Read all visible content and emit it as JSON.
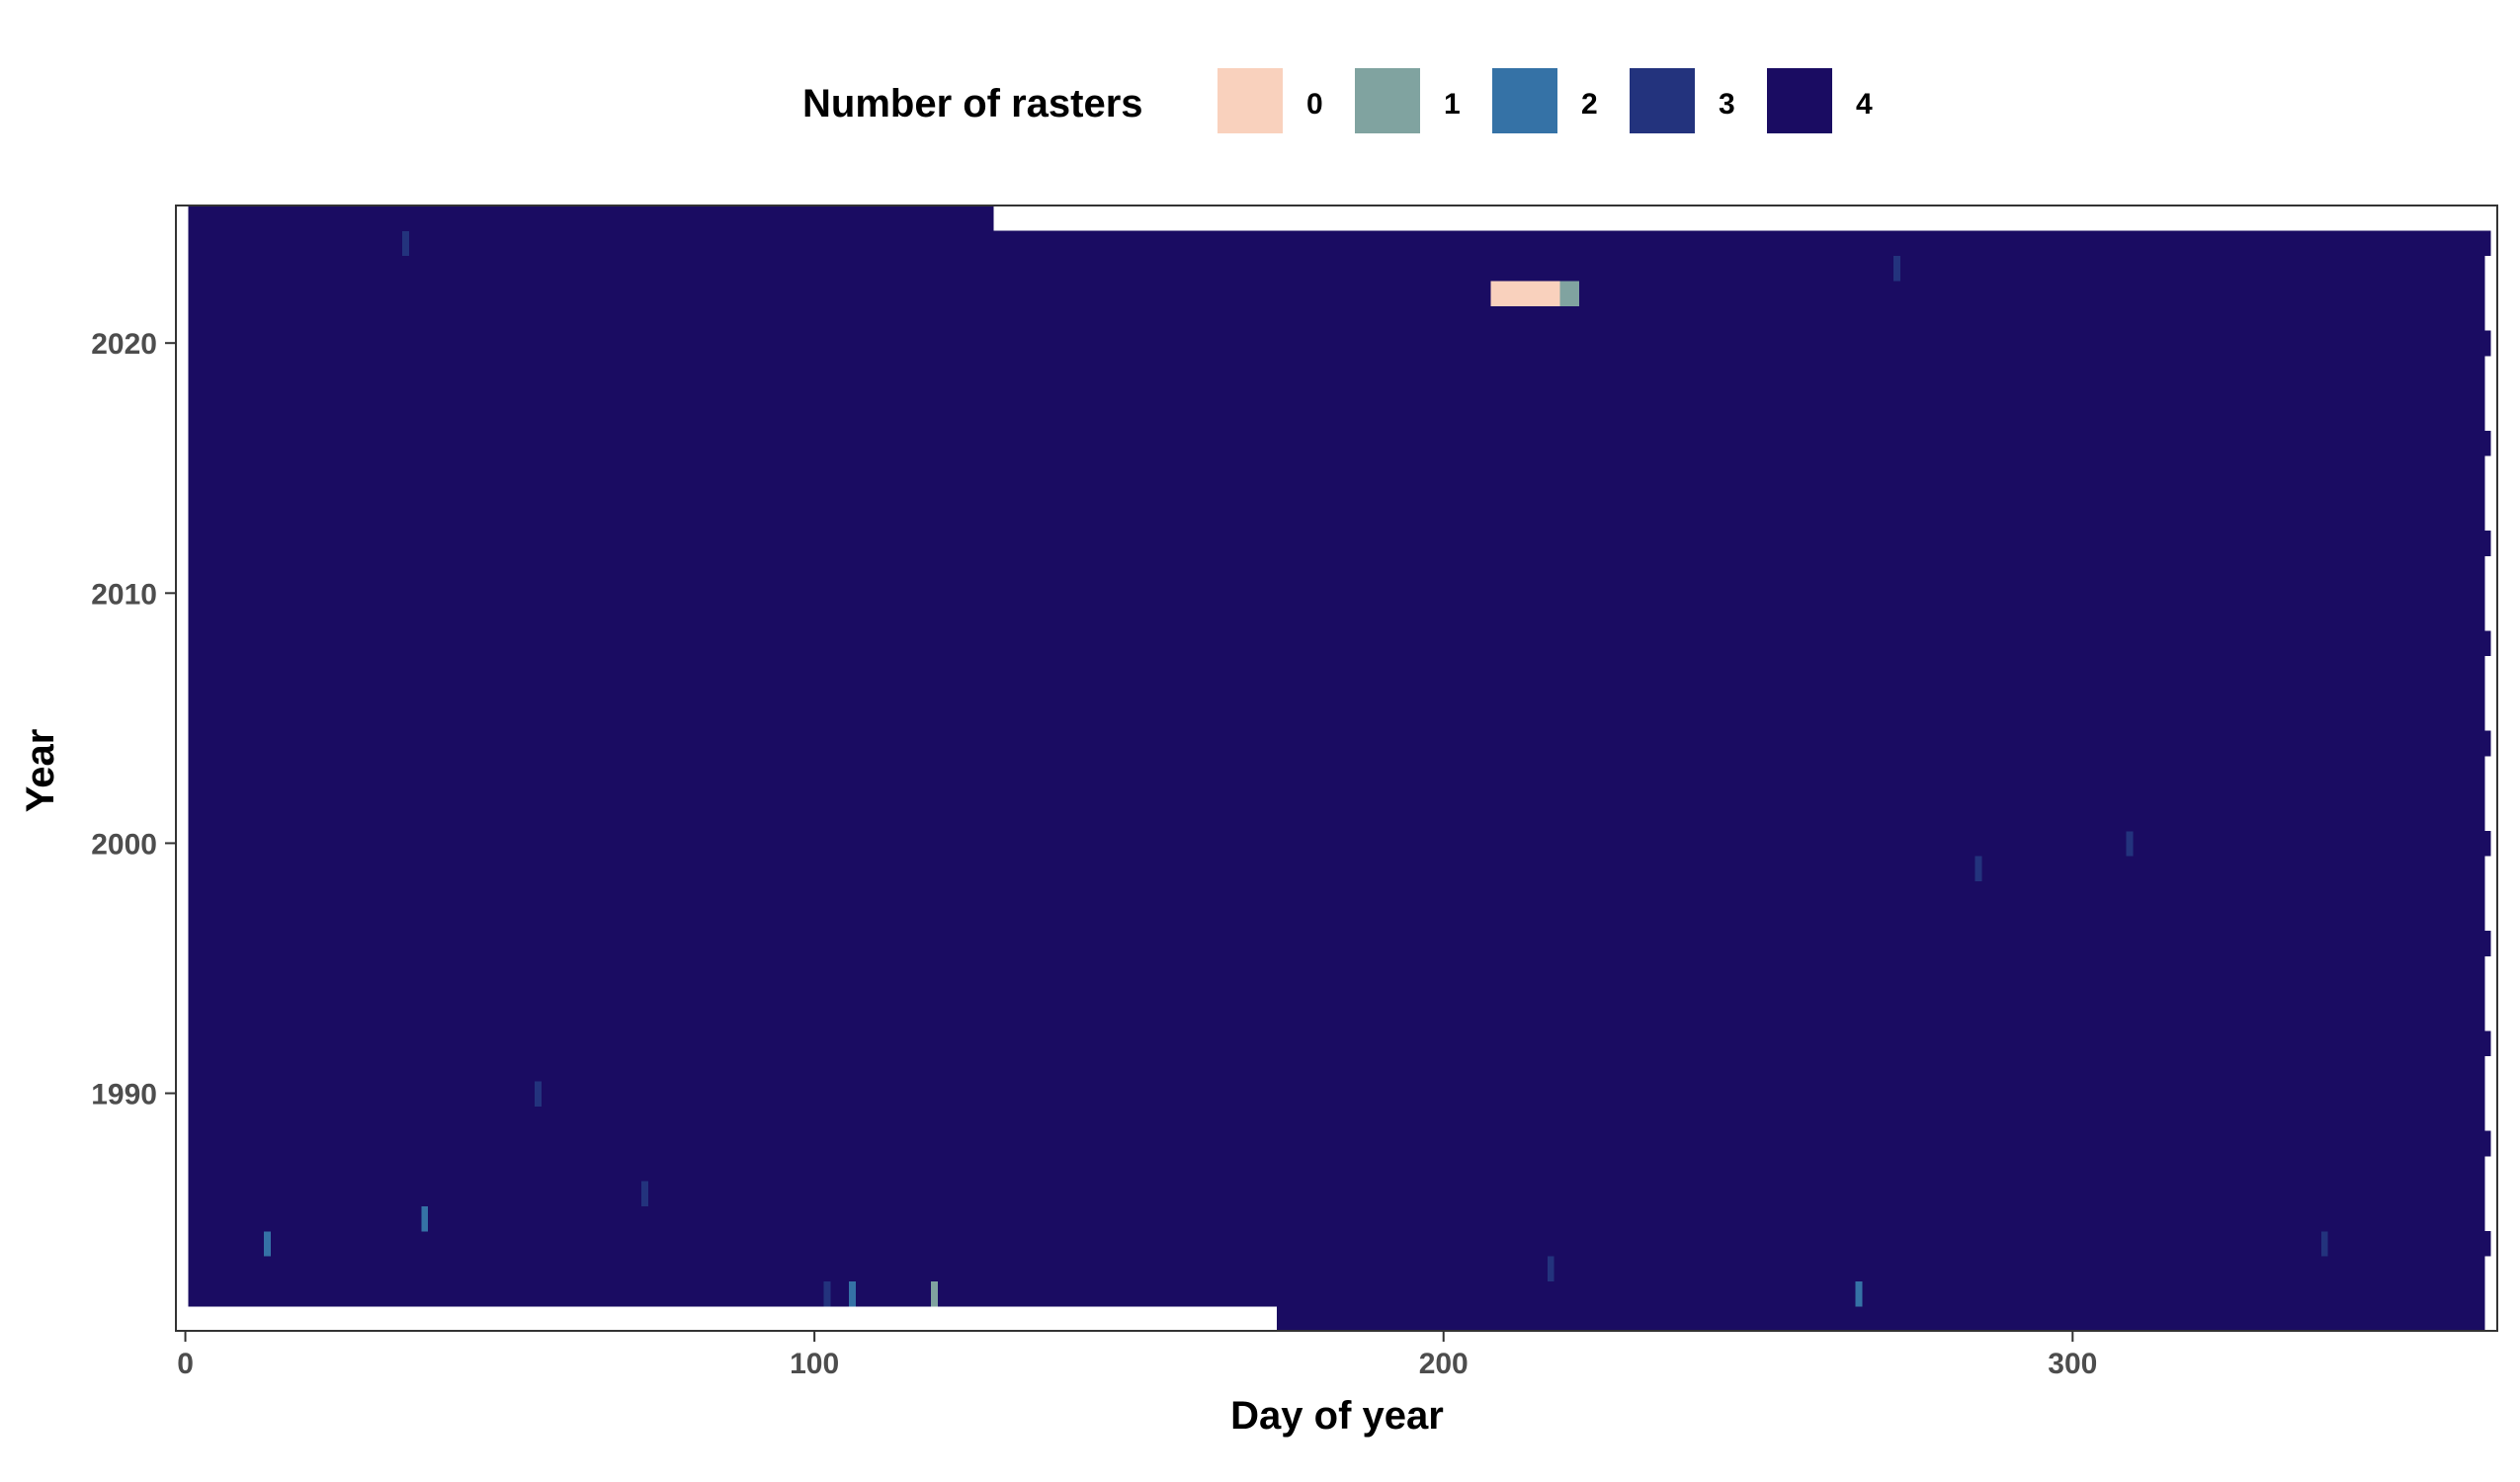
{
  "chart_data": {
    "type": "heatmap",
    "title": "",
    "xlabel": "Day of year",
    "ylabel": "Year",
    "xlim": [
      -1.5,
      367.5
    ],
    "ylim": [
      1980.5,
      2025.5
    ],
    "x_ticks": [
      0,
      100,
      200,
      300
    ],
    "y_ticks": [
      1990,
      2000,
      2010,
      2020
    ],
    "years": [
      1981,
      2025
    ],
    "grid": false,
    "legend": {
      "title": "Number of rasters",
      "position": "top",
      "levels": [
        {
          "label": "0",
          "value": 0,
          "color": "#F9D1BD"
        },
        {
          "label": "1",
          "value": 1,
          "color": "#80A3A0"
        },
        {
          "label": "2",
          "value": 2,
          "color": "#3572A6"
        },
        {
          "label": "3",
          "value": 3,
          "color": "#23337D"
        },
        {
          "label": "4",
          "value": 4,
          "color": "#1A0C62"
        }
      ]
    },
    "default_value": 4,
    "first_year_start_day": 174,
    "last_year_end_day": 128,
    "exceptions": [
      {
        "year": 2024,
        "day": 35,
        "value": 3
      },
      {
        "year": 2023,
        "day": 272,
        "value": 3
      },
      {
        "year": 2022,
        "day": 208,
        "value": 0
      },
      {
        "year": 2022,
        "day": 209,
        "value": 0
      },
      {
        "year": 2022,
        "day": 210,
        "value": 0
      },
      {
        "year": 2022,
        "day": 211,
        "value": 0
      },
      {
        "year": 2022,
        "day": 212,
        "value": 0
      },
      {
        "year": 2022,
        "day": 213,
        "value": 0
      },
      {
        "year": 2022,
        "day": 214,
        "value": 0
      },
      {
        "year": 2022,
        "day": 215,
        "value": 0
      },
      {
        "year": 2022,
        "day": 216,
        "value": 0
      },
      {
        "year": 2022,
        "day": 217,
        "value": 0
      },
      {
        "year": 2022,
        "day": 218,
        "value": 0
      },
      {
        "year": 2022,
        "day": 219,
        "value": 1
      },
      {
        "year": 2022,
        "day": 220,
        "value": 1
      },
      {
        "year": 2022,
        "day": 221,
        "value": 1
      },
      {
        "year": 2000,
        "day": 309,
        "value": 3
      },
      {
        "year": 1999,
        "day": 285,
        "value": 3
      },
      {
        "year": 1990,
        "day": 56,
        "value": 3
      },
      {
        "year": 1986,
        "day": 73,
        "value": 3
      },
      {
        "year": 1985,
        "day": 38,
        "value": 2
      },
      {
        "year": 1984,
        "day": 13,
        "value": 2
      },
      {
        "year": 1984,
        "day": 340,
        "value": 3
      },
      {
        "year": 1983,
        "day": 217,
        "value": 3
      },
      {
        "year": 1982,
        "day": 102,
        "value": 3
      },
      {
        "year": 1982,
        "day": 106,
        "value": 2
      },
      {
        "year": 1982,
        "day": 119,
        "value": 1
      },
      {
        "year": 1982,
        "day": 266,
        "value": 2
      }
    ]
  }
}
